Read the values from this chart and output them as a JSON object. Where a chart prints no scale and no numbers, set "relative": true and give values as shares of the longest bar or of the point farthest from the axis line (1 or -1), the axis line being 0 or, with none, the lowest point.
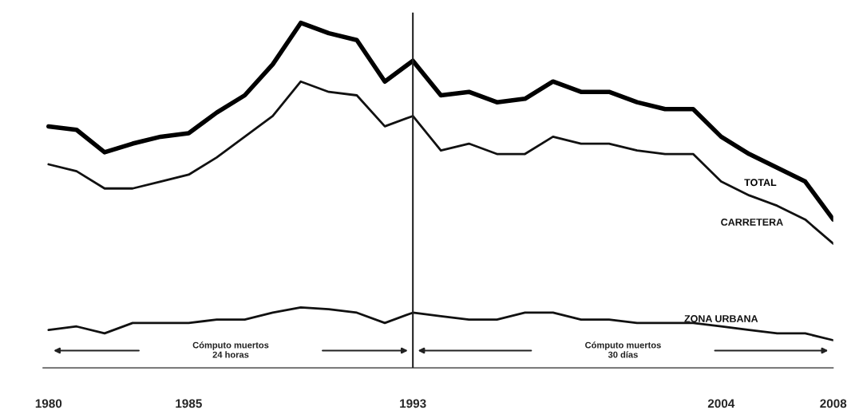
{
  "chart_data": {
    "type": "line",
    "relative": true,
    "categories": [
      "1980",
      null,
      null,
      null,
      null,
      "1985",
      null,
      null,
      null,
      null,
      null,
      null,
      null,
      "1993",
      null,
      null,
      null,
      null,
      null,
      null,
      null,
      null,
      null,
      null,
      "2004",
      null,
      null,
      null,
      "2008"
    ],
    "series": [
      {
        "name": "TOTAL",
        "color": "#000000",
        "values": [
          0.7,
          0.69,
          0.625,
          0.65,
          0.67,
          0.68,
          0.74,
          0.79,
          0.88,
          1.0,
          0.97,
          0.95,
          0.83,
          0.89,
          0.79,
          0.8,
          0.77,
          0.78,
          0.83,
          0.8,
          0.8,
          0.77,
          0.75,
          0.75,
          0.67,
          0.62,
          0.58,
          0.54,
          0.43
        ]
      },
      {
        "name": "CARRETERA",
        "color": "#111111",
        "values": [
          0.59,
          0.57,
          0.52,
          0.52,
          0.54,
          0.56,
          0.61,
          0.67,
          0.73,
          0.83,
          0.8,
          0.79,
          0.7,
          0.73,
          0.63,
          0.65,
          0.62,
          0.62,
          0.67,
          0.65,
          0.65,
          0.63,
          0.62,
          0.62,
          0.54,
          0.5,
          0.47,
          0.43,
          0.36
        ]
      },
      {
        "name": "ZONA URBANA",
        "color": "#111111",
        "values": [
          0.11,
          0.12,
          0.1,
          0.13,
          0.13,
          0.13,
          0.14,
          0.14,
          0.16,
          0.175,
          0.17,
          0.16,
          0.13,
          0.16,
          0.15,
          0.14,
          0.14,
          0.16,
          0.16,
          0.14,
          0.14,
          0.13,
          0.13,
          0.13,
          0.12,
          0.11,
          0.1,
          0.1,
          0.08
        ]
      }
    ],
    "ref_lines": [
      {
        "axis": "x",
        "value": "1993",
        "color": "#222222"
      }
    ],
    "annotations": [
      "Cómputo muertos\n24 horas",
      "Cómputo muertos\n30 días"
    ],
    "tick_labels": "x",
    "legend": false,
    "grid": false
  }
}
